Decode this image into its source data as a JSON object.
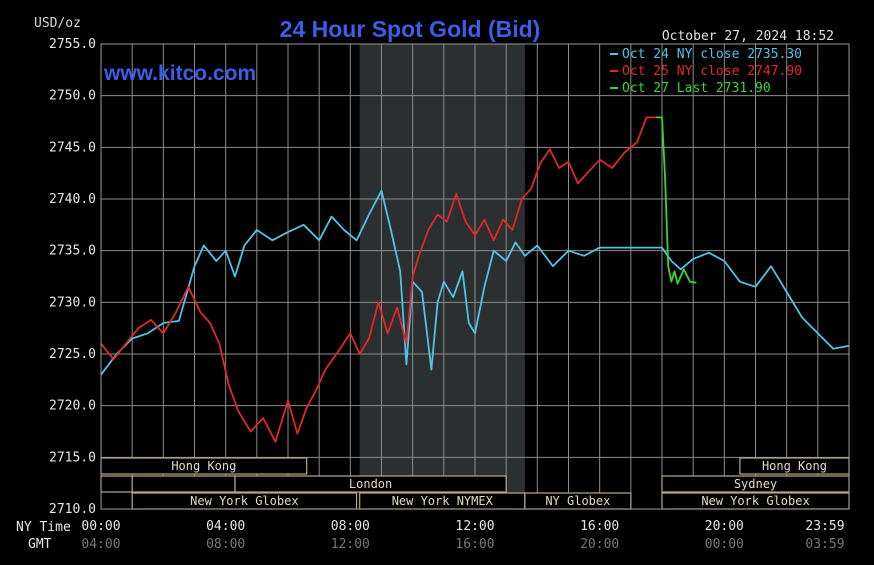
{
  "title": "24 Hour Spot Gold (Bid)",
  "unit_label": "USD/oz",
  "timestamp": "October 27, 2024 18:52",
  "watermark": "www.kitco.com",
  "legend": [
    {
      "label": "Oct 24 NY close 2735.30",
      "color": "#4fc3e8"
    },
    {
      "label": "Oct 25 NY close 2747.90",
      "color": "#e0282c"
    },
    {
      "label": "Oct 27 Last 2731.90",
      "color": "#33d633"
    }
  ],
  "x_ticks_ny": [
    "00:00",
    "04:00",
    "08:00",
    "12:00",
    "16:00",
    "20:00",
    "23:59"
  ],
  "x_ticks_gmt": [
    "04:00",
    "08:00",
    "12:00",
    "16:00",
    "20:00",
    "00:00",
    "03:59"
  ],
  "row_label_ny": "NY Time",
  "row_label_gmt": "GMT",
  "market_sessions": [
    {
      "label": "Hong Kong",
      "row": 0,
      "start": 0.0,
      "end": 6.6
    },
    {
      "label": "",
      "row": 1,
      "start": 0.0,
      "end": 1.0
    },
    {
      "label": "",
      "row": 1,
      "start": 1.0,
      "end": 4.3
    },
    {
      "label": "London",
      "row": 1,
      "start": 4.3,
      "end": 13.0
    },
    {
      "label": "New York Globex",
      "row": 2,
      "start": 1.0,
      "end": 8.2
    },
    {
      "label": "New York NYMEX",
      "row": 2,
      "start": 8.3,
      "end": 13.6
    },
    {
      "label": "NY Globex",
      "row": 2,
      "start": 13.6,
      "end": 17.0
    },
    {
      "label": "Hong Kong",
      "row": 0,
      "start": 20.5,
      "end": 24.0
    },
    {
      "label": "Sydney",
      "row": 1,
      "start": 18.0,
      "end": 24.0
    },
    {
      "label": "New York Globex",
      "row": 2,
      "start": 18.0,
      "end": 24.0
    }
  ],
  "chart_data": {
    "type": "line",
    "title": "24 Hour Spot Gold (Bid)",
    "ylabel": "USD/oz",
    "xlabel": "NY Time",
    "ylim": [
      2710,
      2755
    ],
    "xlim": [
      0,
      24
    ],
    "yticks": [
      "2710.0",
      "2715.0",
      "2720.0",
      "2725.0",
      "2730.0",
      "2735.0",
      "2740.0",
      "2745.0",
      "2750.0",
      "2755.0"
    ],
    "grid": true,
    "legend_position": "top-right",
    "shaded_region": [
      8.3,
      13.6
    ],
    "x_units": "hours since 00:00 NY time",
    "series": [
      {
        "name": "Oct 24 NY close 2735.30",
        "color": "#4fc3e8",
        "x": [
          0,
          0.5,
          1.0,
          1.5,
          2.0,
          2.5,
          3.0,
          3.3,
          3.7,
          4.0,
          4.3,
          4.6,
          5.0,
          5.5,
          6.0,
          6.5,
          7.0,
          7.4,
          7.8,
          8.2,
          8.6,
          9.0,
          9.3,
          9.6,
          9.8,
          10.0,
          10.3,
          10.6,
          10.8,
          11.0,
          11.3,
          11.6,
          11.8,
          12.0,
          12.3,
          12.6,
          13.0,
          13.3,
          13.6,
          14.0,
          14.5,
          15.0,
          15.5,
          16.0,
          16.5,
          17.0,
          17.5,
          18.0,
          18.3,
          18.6,
          19.0,
          19.5,
          20.0,
          20.5,
          21.0,
          21.5,
          22.0,
          22.5,
          23.0,
          23.5,
          24.0
        ],
        "values": [
          2723.0,
          2725.0,
          2726.5,
          2727.0,
          2728.0,
          2728.2,
          2733.5,
          2735.5,
          2734.0,
          2735.0,
          2732.5,
          2735.5,
          2737.0,
          2736.0,
          2736.8,
          2737.5,
          2736.0,
          2738.3,
          2737.0,
          2736.0,
          2738.5,
          2740.8,
          2737.0,
          2733.0,
          2724.0,
          2732.0,
          2731.0,
          2723.5,
          2730.0,
          2732.0,
          2730.5,
          2733.0,
          2728.0,
          2727.0,
          2731.5,
          2735.0,
          2734.0,
          2735.8,
          2734.5,
          2735.5,
          2733.5,
          2735.0,
          2734.5,
          2735.3,
          2735.3,
          2735.3,
          2735.3,
          2735.3,
          2734.0,
          2733.2,
          2734.2,
          2734.8,
          2734.0,
          2732.0,
          2731.5,
          2733.5,
          2731.0,
          2728.5,
          2727.0,
          2725.5,
          2725.8
        ]
      },
      {
        "name": "Oct 25 NY close 2747.90",
        "color": "#e0282c",
        "x": [
          0,
          0.4,
          0.8,
          1.2,
          1.6,
          2.0,
          2.4,
          2.8,
          3.2,
          3.5,
          3.8,
          4.1,
          4.4,
          4.8,
          5.2,
          5.6,
          6.0,
          6.3,
          6.6,
          6.9,
          7.2,
          7.6,
          8.0,
          8.3,
          8.6,
          8.9,
          9.2,
          9.5,
          9.8,
          10.0,
          10.2,
          10.5,
          10.8,
          11.1,
          11.4,
          11.7,
          12.0,
          12.3,
          12.6,
          12.9,
          13.2,
          13.5,
          13.8,
          14.1,
          14.4,
          14.7,
          15.0,
          15.3,
          15.6,
          16.0,
          16.4,
          16.8,
          17.2,
          17.5,
          17.8
        ],
        "values": [
          2726.0,
          2724.5,
          2726.0,
          2727.5,
          2728.3,
          2727.0,
          2729.0,
          2731.5,
          2729.0,
          2728.0,
          2726.0,
          2722.0,
          2719.5,
          2717.5,
          2718.8,
          2716.5,
          2720.5,
          2717.3,
          2719.8,
          2721.5,
          2723.5,
          2725.2,
          2727.0,
          2725.0,
          2726.5,
          2730.0,
          2727.0,
          2729.5,
          2726.0,
          2732.5,
          2734.5,
          2737.0,
          2738.5,
          2737.8,
          2740.5,
          2737.8,
          2736.5,
          2738.0,
          2736.0,
          2738.0,
          2737.0,
          2740.0,
          2741.0,
          2743.5,
          2744.8,
          2743.0,
          2743.6,
          2741.5,
          2742.5,
          2743.8,
          2743.0,
          2744.5,
          2745.5,
          2747.9,
          2747.9
        ]
      },
      {
        "name": "Oct 27 Last 2731.90",
        "color": "#33d633",
        "x": [
          17.8,
          18.0,
          18.1,
          18.2,
          18.3,
          18.4,
          18.5,
          18.7,
          18.9,
          19.1
        ],
        "values": [
          2747.9,
          2747.9,
          2742.0,
          2733.5,
          2732.0,
          2733.0,
          2731.8,
          2733.2,
          2732.0,
          2731.9
        ]
      }
    ]
  }
}
